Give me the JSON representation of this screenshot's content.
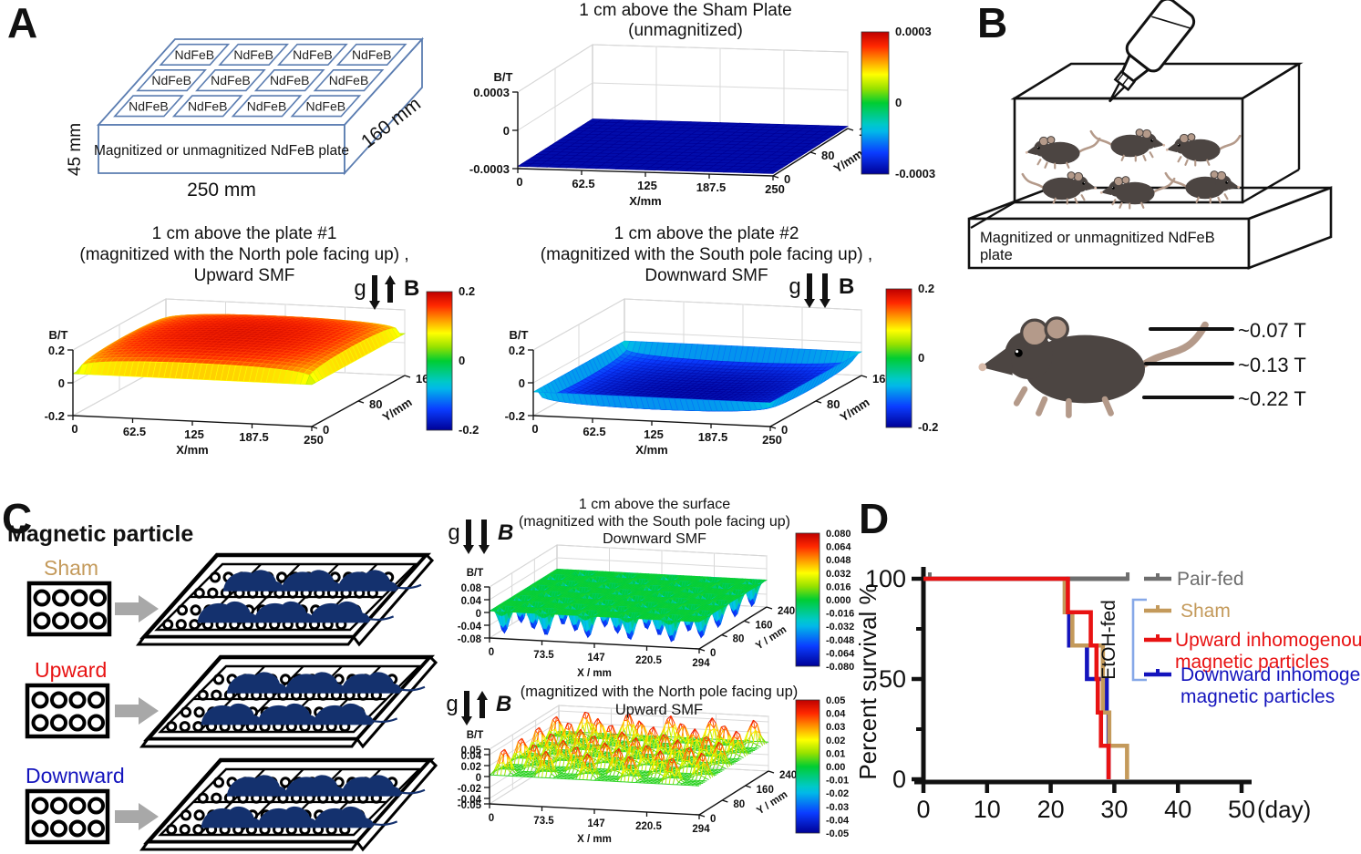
{
  "figure": {
    "background": "#ffffff"
  },
  "panels": {
    "a": {
      "label": "A",
      "plate_diagram": {
        "tile_label": "NdFeB",
        "tile_count": 12,
        "front_label": "Magnitized or unmagnitized NdFeB plate",
        "height_label": "45 mm",
        "width_label": "250 mm",
        "depth_label": "160 mm",
        "edge_color": "#5b7db1"
      }
    },
    "b": {
      "label": "B",
      "plate_label": "Magnitized or unmagnitized NdFeB plate",
      "mouse_count": 6,
      "field_levels": [
        "~0.07 T",
        "~0.13 T",
        "~0.22 T"
      ]
    },
    "c": {
      "label": "C",
      "header": "Magnetic particle",
      "groups": [
        {
          "name": "Sham",
          "color": "#c49a5b"
        },
        {
          "name": "Upward",
          "color": "#e81212"
        },
        {
          "name": "Downward",
          "color": "#1414bd"
        }
      ]
    },
    "d": {
      "label": "D"
    }
  },
  "chart_data": [
    {
      "id": "sham",
      "type": "surface3d",
      "title_lines": [
        "1 cm above the Sham Plate",
        "(unmagnitized)"
      ],
      "xlabel": "X/mm",
      "ylabel": "Y/mm",
      "zlabel": "B/T",
      "xticks": [
        "0",
        "62.5",
        "125",
        "187.5",
        "250"
      ],
      "yticks": [
        "0",
        "80",
        "160"
      ],
      "zticks": [
        "0.0003",
        "0",
        "-0.0003"
      ],
      "xlim": [
        0,
        250
      ],
      "ylim": [
        0,
        160
      ],
      "zlim": [
        -0.0003,
        0.0003
      ],
      "surface": "flat uniform field ≈ -0.0003 T (deep blue) across the whole plate",
      "colorbar_ticks": [
        "0.0003",
        "0",
        "-0.0003"
      ]
    },
    {
      "id": "plate1",
      "type": "surface3d",
      "title_lines": [
        "1 cm above the plate #1",
        "(magnitized with the North pole facing up) ,",
        "Upward SMF"
      ],
      "xlabel": "X/mm",
      "ylabel": "Y/mm",
      "zlabel": "B/T",
      "xticks": [
        "0",
        "62.5",
        "125",
        "187.5",
        "250"
      ],
      "yticks": [
        "0",
        "80",
        "160"
      ],
      "zticks": [
        "0.2",
        "0",
        "-0.2"
      ],
      "xlim": [
        0,
        250
      ],
      "ylim": [
        0,
        160
      ],
      "zlim": [
        -0.2,
        0.2
      ],
      "annotation": {
        "g": "g",
        "b": "B",
        "b_direction": "up"
      },
      "surface": "smooth positive dome ≈ +0.2 T (red) falling toward 0 (green/yellow) at plate edges",
      "colorbar_ticks": [
        "0.2",
        "0",
        "-0.2"
      ]
    },
    {
      "id": "plate2",
      "type": "surface3d",
      "title_lines": [
        "1 cm above the plate #2",
        "(magnitized with the South pole facing up) ,",
        "Downward SMF"
      ],
      "xlabel": "X/mm",
      "ylabel": "Y/mm",
      "zlabel": "B/T",
      "xticks": [
        "0",
        "62.5",
        "125",
        "187.5",
        "250"
      ],
      "yticks": [
        "0",
        "80",
        "160"
      ],
      "zticks": [
        "0.2",
        "0",
        "-0.2"
      ],
      "xlim": [
        0,
        250
      ],
      "ylim": [
        0,
        160
      ],
      "zlim": [
        -0.2,
        0.2
      ],
      "annotation": {
        "g": "g",
        "b": "B",
        "b_direction": "down"
      },
      "surface": "smooth negative bowl ≈ -0.2 T (blue) rising toward 0 (green/cyan) at plate edges",
      "colorbar_ticks": [
        "0.2",
        "0",
        "-0.2"
      ]
    },
    {
      "id": "particles_down",
      "type": "surface3d",
      "title_lines": [
        "1 cm above the surface",
        "(magnitized with the South pole facing up)",
        "Downward SMF"
      ],
      "xlabel": "X / mm",
      "ylabel": "Y / mm",
      "zlabel": "B/T",
      "xticks": [
        "0",
        "73.5",
        "147",
        "220.5",
        "294"
      ],
      "yticks": [
        "0",
        "80",
        "160",
        "240"
      ],
      "zticks": [
        "0.08",
        "0.04",
        "0",
        "-0.04",
        "-0.08"
      ],
      "xlim": [
        0,
        294
      ],
      "ylim": [
        0,
        240
      ],
      "zlim": [
        -0.08,
        0.08
      ],
      "annotation": {
        "g": "g",
        "b": "B",
        "b_direction": "down"
      },
      "surface": "near-zero green sheet with periodic downward dips to ≈ -0.06 T (blue) above each magnet",
      "colorbar_ticks": [
        "0.080",
        "0.064",
        "0.048",
        "0.032",
        "0.016",
        "0.000",
        "-0.016",
        "-0.032",
        "-0.048",
        "-0.064",
        "-0.080"
      ]
    },
    {
      "id": "particles_up",
      "type": "surface3d",
      "title_lines": [
        "(magnitized with the North pole facing up)",
        "Upward SMF"
      ],
      "xlabel": "X / mm",
      "ylabel": "Y / mm",
      "zlabel": "B/T",
      "xticks": [
        "0",
        "73.5",
        "147",
        "220.5",
        "294"
      ],
      "yticks": [
        "0",
        "80",
        "160",
        "240"
      ],
      "zticks": [
        "0.05",
        "0.04",
        "0.02",
        "0",
        "-0.02",
        "-0.04",
        "-0.05"
      ],
      "xlim": [
        0,
        294
      ],
      "ylim": [
        0,
        240
      ],
      "zlim": [
        -0.05,
        0.05
      ],
      "annotation": {
        "g": "g",
        "b": "B",
        "b_direction": "up"
      },
      "surface": "wireframe sheet with periodic upward spikes to ≈ +0.05 T (yellow/red tips) above each magnet",
      "colorbar_ticks": [
        "0.05",
        "0.04",
        "0.03",
        "0.02",
        "0.01",
        "0.00",
        "-0.01",
        "-0.02",
        "-0.03",
        "-0.04",
        "-0.05"
      ]
    },
    {
      "id": "survival",
      "type": "step-line-kaplan-meier",
      "ylabel": "Percent survival %",
      "xlabel": "(day)",
      "xticks": [
        "0",
        "10",
        "20",
        "30",
        "40",
        "50"
      ],
      "yticks": [
        "0",
        "50",
        "100"
      ],
      "xlim": [
        0,
        50
      ],
      "ylim": [
        0,
        100
      ],
      "series": [
        {
          "name": "Pair-fed",
          "color": "#6e6e6e",
          "points": [
            [
              0.3,
              100
            ],
            [
              32.3,
              100
            ]
          ],
          "censor_ticks": [
            1,
            32.1
          ]
        },
        {
          "name": "Sham",
          "color": "#c49a5b",
          "points": [
            [
              0,
              100
            ],
            [
              22.2,
              100
            ],
            [
              22.2,
              83.3
            ],
            [
              23.4,
              83.3
            ],
            [
              23.4,
              66.7
            ],
            [
              28.2,
              66.7
            ],
            [
              28.2,
              33.3
            ],
            [
              29.2,
              33.3
            ],
            [
              29.2,
              16.7
            ],
            [
              32,
              16.7
            ],
            [
              32,
              0
            ]
          ]
        },
        {
          "name": "Upward inhomogenous magnetic particles",
          "color": "#e81212",
          "points": [
            [
              0,
              100
            ],
            [
              22.7,
              100
            ],
            [
              22.7,
              83.3
            ],
            [
              26.3,
              83.3
            ],
            [
              26.3,
              66.7
            ],
            [
              27.2,
              66.7
            ],
            [
              27.2,
              50
            ],
            [
              27.4,
              50
            ],
            [
              27.4,
              33.3
            ],
            [
              27.9,
              33.3
            ],
            [
              27.9,
              16.7
            ],
            [
              29.1,
              16.7
            ],
            [
              29.1,
              0
            ]
          ]
        },
        {
          "name": "Downward inhomogenous magnetic particles",
          "color": "#1414bd",
          "points": [
            [
              0,
              100
            ],
            [
              22.4,
              100
            ],
            [
              22.4,
              83.3
            ],
            [
              22.9,
              83.3
            ],
            [
              22.9,
              66.7
            ],
            [
              25.7,
              66.7
            ],
            [
              25.7,
              50
            ],
            [
              28.8,
              50
            ],
            [
              28.8,
              33.3
            ],
            [
              29.1,
              33.3
            ],
            [
              29.1,
              0
            ]
          ]
        }
      ],
      "legend": [
        {
          "label_lines": [
            "Pair-fed"
          ],
          "color": "#6e6e6e"
        },
        {
          "label_lines": [
            "Sham"
          ],
          "color": "#c49a5b"
        },
        {
          "label_lines": [
            "Upward inhomogenous",
            "magnetic particles"
          ],
          "color": "#e81212"
        },
        {
          "label_lines": [
            "Downward inhomogenous",
            "magnetic particles"
          ],
          "color": "#1414bd"
        }
      ],
      "group_bracket": {
        "label": "EtOH-fed",
        "color": "#86a8e8",
        "applies_to": [
          "Sham",
          "Upward inhomogenous magnetic particles",
          "Downward inhomogenous magnetic particles"
        ]
      }
    }
  ]
}
